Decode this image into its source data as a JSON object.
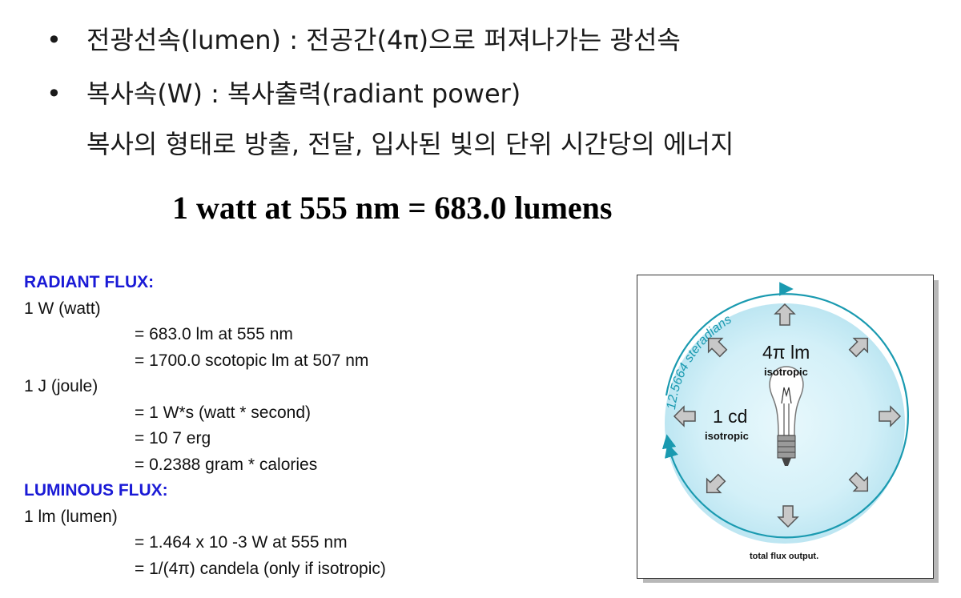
{
  "bullets": [
    {
      "symbol": "•",
      "text": "전광선속(lumen) : 전공간(4π)으로 퍼져나가는 광선속"
    },
    {
      "symbol": "•",
      "text": "복사속(W) : 복사출력(radiant power)"
    }
  ],
  "continuation": "복사의 형태로 방출, 전달, 입사된 빛의 단위 시간당의 에너지",
  "headline": "1 watt at 555 nm = 683.0 lumens",
  "radiant_flux": {
    "heading": "RADIANT FLUX:",
    "watt": "1 W (watt)",
    "watt_equivs": [
      "= 683.0 lm at 555 nm",
      "= 1700.0 scotopic lm at 507 nm"
    ],
    "joule": "1 J (joule)",
    "joule_equivs": [
      "= 1 W*s (watt * second)",
      "= 10 7 erg",
      "= 0.2388 gram * calories"
    ]
  },
  "luminous_flux": {
    "heading": "LUMINOUS FLUX:",
    "lumen": "1 lm (lumen)",
    "lumen_equivs": [
      "= 1.464 x 10 -3 W at 555 nm",
      "= 1/(4π) candela (only if isotropic)"
    ]
  },
  "figure": {
    "arc_label": "12.5664 steradians",
    "lm_value": "4π lm",
    "lm_note": "isotropic",
    "cd_value": "1 cd",
    "cd_note": "isotropic",
    "caption": "total flux output.",
    "colors": {
      "arc": "#1a9ab0",
      "glow": "#cdeef7",
      "arrow_fill": "#c8c8c8",
      "arrow_stroke": "#555555"
    },
    "icons": [
      "light-bulb-icon",
      "outward-arrow-icon"
    ]
  }
}
